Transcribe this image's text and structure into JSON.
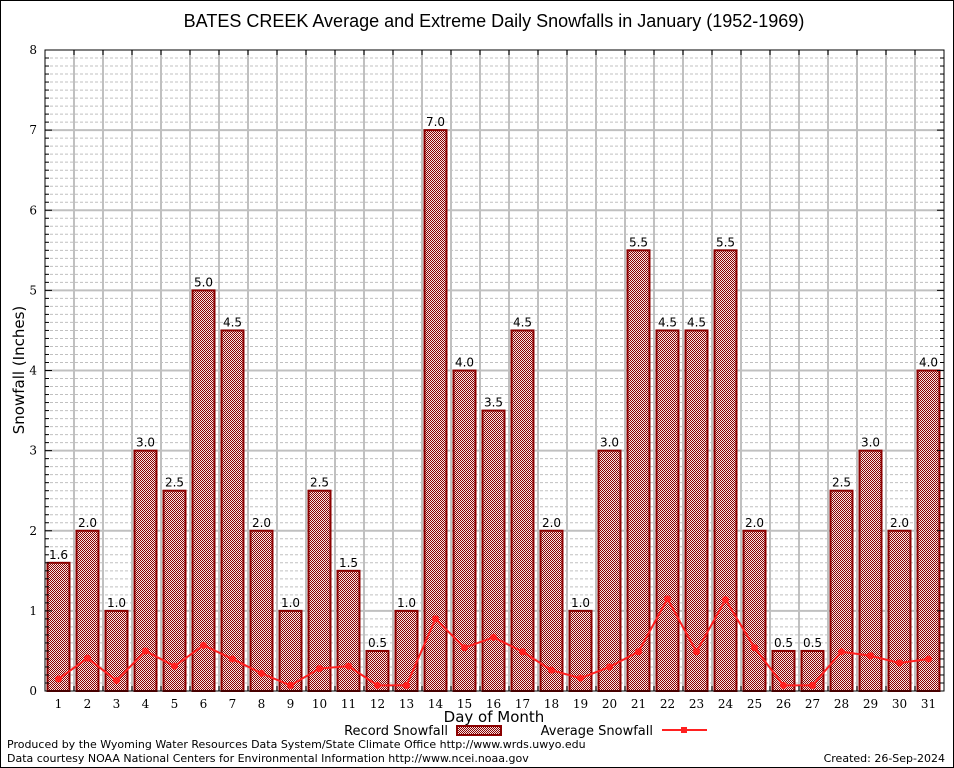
{
  "chart_data": {
    "type": "bar",
    "title": "BATES CREEK Average and Extreme Daily Snowfalls in January (1952-1969)",
    "xlabel": "Day of Month",
    "ylabel": "Snowfall (Inches)",
    "ylim": [
      0,
      8
    ],
    "yticks": [
      "0",
      "1",
      "2",
      "3",
      "4",
      "5",
      "6",
      "7",
      "8"
    ],
    "grid": true,
    "legend_position": "bottom",
    "categories": [
      "1",
      "2",
      "3",
      "4",
      "5",
      "6",
      "7",
      "8",
      "9",
      "10",
      "11",
      "12",
      "13",
      "14",
      "15",
      "16",
      "17",
      "18",
      "19",
      "20",
      "21",
      "22",
      "23",
      "24",
      "25",
      "26",
      "27",
      "28",
      "29",
      "30",
      "31"
    ],
    "series": [
      {
        "name": "Record Snowfall",
        "type": "bar",
        "color": "#8b0000",
        "values": [
          1.6,
          2.0,
          1.0,
          3.0,
          2.5,
          5.0,
          4.5,
          2.0,
          1.0,
          2.5,
          1.5,
          0.5,
          1.0,
          7.0,
          4.0,
          3.5,
          4.5,
          2.0,
          1.0,
          3.0,
          5.5,
          4.5,
          4.5,
          5.5,
          2.0,
          0.5,
          0.5,
          2.5,
          3.0,
          2.0,
          4.0
        ],
        "labels": [
          "1.6",
          "2.0",
          "1.0",
          "3.0",
          "2.5",
          "5.0",
          "4.5",
          "2.0",
          "1.0",
          "2.5",
          "1.5",
          "0.5",
          "1.0",
          "7.0",
          "4.0",
          "3.5",
          "4.5",
          "2.0",
          "1.0",
          "3.0",
          "5.5",
          "4.5",
          "4.5",
          "5.5",
          "2.0",
          "0.5",
          "0.5",
          "2.5",
          "3.0",
          "2.0",
          "4.0"
        ]
      },
      {
        "name": "Average Snowfall",
        "type": "line",
        "color": "#ff2020",
        "values": [
          0.15,
          0.41,
          0.13,
          0.5,
          0.31,
          0.57,
          0.4,
          0.22,
          0.07,
          0.28,
          0.31,
          0.07,
          0.07,
          0.9,
          0.54,
          0.67,
          0.49,
          0.26,
          0.16,
          0.3,
          0.49,
          1.15,
          0.49,
          1.14,
          0.54,
          0.07,
          0.07,
          0.49,
          0.44,
          0.35,
          0.4
        ]
      }
    ]
  },
  "footer": {
    "line1": "Produced by the Wyoming Water Resources Data System/State Climate Office http://www.wrds.uwyo.edu",
    "line2": "Data courtesy NOAA National Centers for Environmental Information http://www.ncei.noaa.gov",
    "created": "Created: 26-Sep-2024"
  }
}
